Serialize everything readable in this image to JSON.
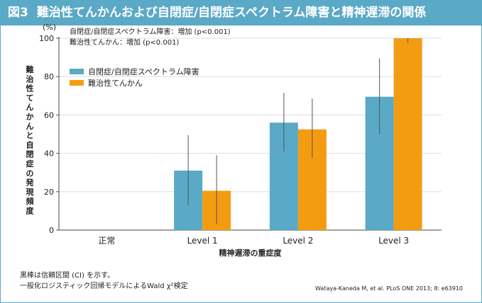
{
  "header": {
    "fig_label": "図3",
    "title": "難治性てんかんおよび自閉症/自閉症スペクトラム障害と精神遅滞の関係"
  },
  "annotations": [
    "自閉症/自閉症スペクトラム障害：増加 (p<0.001)",
    "難治性てんかん：増加 (p<0.001)"
  ],
  "footer": {
    "note1": "黒棒は信頼区間 (CI) を示す。",
    "note2": "一般化ロジスティック回帰モデルによるWald χ²検定",
    "citation": "Wataya-Kaneda M, et al. PLoS ONE 2013; 8: e63910"
  },
  "colors": {
    "series1": "#5aa9c7",
    "series2": "#f39c12",
    "header": "#5aa9c7"
  },
  "chart_data": {
    "type": "bar",
    "categories": [
      "正常",
      "Level 1",
      "Level 2",
      "Level 3"
    ],
    "series": [
      {
        "name": "自閉症/自閉症スペクトラム障害",
        "values": [
          0,
          31,
          56,
          69.5
        ],
        "ci_low": [
          null,
          13,
          41,
          50
        ],
        "ci_high": [
          null,
          49.5,
          71.5,
          89.5
        ]
      },
      {
        "name": "難治性てんかん",
        "values": [
          0,
          20.5,
          52.5,
          100
        ],
        "ci_low": [
          null,
          3,
          37.5,
          97.5
        ],
        "ci_high": [
          null,
          39,
          68.5,
          100
        ]
      }
    ],
    "xlabel": "精神遅滞の重症度",
    "ylabel": "難治性てんかんと自閉症の発現頻度",
    "yunit": "(%)",
    "ylim": [
      0,
      100
    ],
    "yticks": [
      0,
      20,
      40,
      60,
      80,
      100
    ],
    "legend": "top-left"
  }
}
